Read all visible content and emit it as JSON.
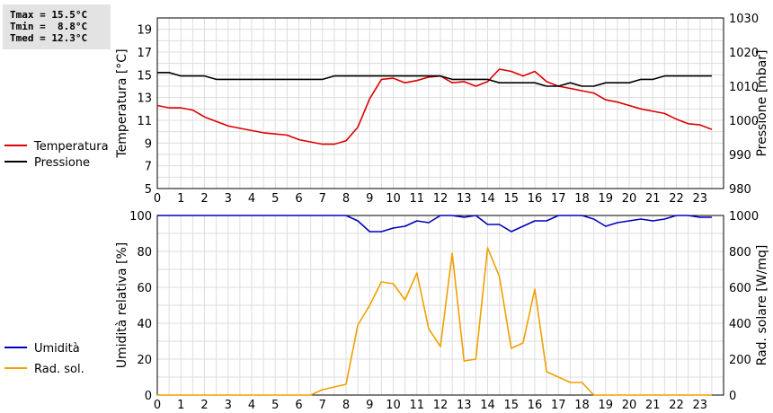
{
  "stats": {
    "lines": [
      "Tmax = 15.5°C",
      "Tmin =  8.8°C",
      "Tmed = 12.3°C"
    ]
  },
  "chart_data": [
    {
      "type": "line",
      "title": "",
      "xlabel": "",
      "ylabel_left": "Temperatura [°C]",
      "ylabel_right": "Pressione [mbar]",
      "xlim": [
        0,
        24
      ],
      "x_ticks": [
        0,
        1,
        2,
        3,
        4,
        5,
        6,
        7,
        8,
        9,
        10,
        11,
        12,
        13,
        14,
        15,
        16,
        17,
        18,
        19,
        20,
        21,
        22,
        23
      ],
      "y_left_ticks": [
        5,
        7,
        9,
        11,
        13,
        15,
        17,
        19
      ],
      "y_left_lim": [
        5,
        20
      ],
      "y_right_ticks": [
        980,
        990,
        1000,
        1010,
        1020,
        1030
      ],
      "y_right_lim": [
        980,
        1030
      ],
      "grid": true,
      "legend_placement": "left",
      "colors": {
        "Temperatura": "#dd0000",
        "Pressione": "#000000"
      },
      "series": [
        {
          "name": "Temperatura",
          "axis": "left",
          "x": [
            0,
            0.5,
            1,
            1.5,
            2,
            2.5,
            3,
            3.5,
            4,
            4.5,
            5,
            5.5,
            6,
            6.5,
            7,
            7.5,
            8,
            8.5,
            9,
            9.5,
            10,
            10.5,
            11,
            11.5,
            12,
            12.5,
            13,
            13.5,
            14,
            14.5,
            15,
            15.5,
            16,
            16.5,
            17,
            17.5,
            18,
            18.5,
            19,
            19.5,
            20,
            20.5,
            21,
            21.5,
            22,
            22.5,
            23,
            23.5
          ],
          "values": [
            12.3,
            12.1,
            12.1,
            11.9,
            11.3,
            10.9,
            10.5,
            10.3,
            10.1,
            9.9,
            9.8,
            9.7,
            9.3,
            9.1,
            8.9,
            8.9,
            9.2,
            10.4,
            12.9,
            14.6,
            14.7,
            14.3,
            14.5,
            14.8,
            14.9,
            14.3,
            14.4,
            14.0,
            14.4,
            15.5,
            15.3,
            14.9,
            15.3,
            14.4,
            14.0,
            13.8,
            13.6,
            13.4,
            12.8,
            12.6,
            12.3,
            12.0,
            11.8,
            11.6,
            11.1,
            10.7,
            10.6,
            10.2
          ]
        },
        {
          "name": "Pressione",
          "axis": "right",
          "x": [
            0,
            0.5,
            1,
            1.5,
            2,
            2.5,
            3,
            3.5,
            4,
            4.5,
            5,
            5.5,
            6,
            6.5,
            7,
            7.5,
            8,
            8.5,
            9,
            9.5,
            10,
            10.5,
            11,
            11.5,
            12,
            12.5,
            13,
            13.5,
            14,
            14.5,
            15,
            15.5,
            16,
            16.5,
            17,
            17.5,
            18,
            18.5,
            19,
            19.5,
            20,
            20.5,
            21,
            21.5,
            22,
            22.5,
            23,
            23.5
          ],
          "values": [
            1014,
            1014,
            1013,
            1013,
            1013,
            1012,
            1012,
            1012,
            1012,
            1012,
            1012,
            1012,
            1012,
            1012,
            1012,
            1013,
            1013,
            1013,
            1013,
            1013,
            1013,
            1013,
            1013,
            1013,
            1013,
            1012,
            1012,
            1012,
            1012,
            1011,
            1011,
            1011,
            1011,
            1010,
            1010,
            1011,
            1010,
            1010,
            1011,
            1011,
            1011,
            1012,
            1012,
            1013,
            1013,
            1013,
            1013,
            1013
          ]
        }
      ]
    },
    {
      "type": "line",
      "title": "",
      "xlabel": "",
      "ylabel_left": "Umidità relativa [%]",
      "ylabel_right": "Rad. solare [W/mq]",
      "xlim": [
        0,
        24
      ],
      "x_ticks": [
        0,
        1,
        2,
        3,
        4,
        5,
        6,
        7,
        8,
        9,
        10,
        11,
        12,
        13,
        14,
        15,
        16,
        17,
        18,
        19,
        20,
        21,
        22,
        23
      ],
      "y_left_ticks": [
        0,
        20,
        40,
        60,
        80,
        100
      ],
      "y_left_lim": [
        0,
        100
      ],
      "y_right_ticks": [
        0,
        200,
        400,
        600,
        800,
        1000
      ],
      "y_right_lim": [
        0,
        1000
      ],
      "grid": true,
      "legend_placement": "left",
      "colors": {
        "Umidità": "#0000bb",
        "Rad. sol.": "#f0a000"
      },
      "series": [
        {
          "name": "Umidità",
          "axis": "left",
          "x": [
            0,
            0.5,
            1,
            1.5,
            2,
            2.5,
            3,
            3.5,
            4,
            4.5,
            5,
            5.5,
            6,
            6.5,
            7,
            7.5,
            8,
            8.5,
            9,
            9.5,
            10,
            10.5,
            11,
            11.5,
            12,
            12.5,
            13,
            13.5,
            14,
            14.5,
            15,
            15.5,
            16,
            16.5,
            17,
            17.5,
            18,
            18.5,
            19,
            19.5,
            20,
            20.5,
            21,
            21.5,
            22,
            22.5,
            23,
            23.5
          ],
          "values": [
            100,
            100,
            100,
            100,
            100,
            100,
            100,
            100,
            100,
            100,
            100,
            100,
            100,
            100,
            100,
            100,
            100,
            97,
            91,
            91,
            93,
            94,
            97,
            96,
            100,
            100,
            99,
            100,
            95,
            95,
            91,
            94,
            97,
            97,
            100,
            100,
            100,
            98,
            94,
            96,
            97,
            98,
            97,
            98,
            100,
            100,
            99,
            99
          ]
        },
        {
          "name": "Rad. sol.",
          "axis": "right",
          "x": [
            0,
            0.5,
            1,
            1.5,
            2,
            2.5,
            3,
            3.5,
            4,
            4.5,
            5,
            5.5,
            6,
            6.5,
            7,
            7.5,
            8,
            8.5,
            9,
            9.5,
            10,
            10.5,
            11,
            11.5,
            12,
            12.5,
            13,
            13.5,
            14,
            14.5,
            15,
            15.5,
            16,
            16.5,
            17,
            17.5,
            18,
            18.5,
            19,
            19.5,
            20,
            20.5,
            21,
            21.5,
            22,
            22.5,
            23,
            23.5
          ],
          "values": [
            0,
            0,
            0,
            0,
            0,
            0,
            0,
            0,
            0,
            0,
            0,
            0,
            0,
            0,
            30,
            45,
            60,
            390,
            500,
            630,
            620,
            530,
            680,
            370,
            270,
            790,
            190,
            200,
            820,
            660,
            260,
            290,
            590,
            130,
            100,
            70,
            70,
            0,
            0,
            0,
            0,
            0,
            0,
            0,
            0,
            0,
            0,
            0
          ]
        }
      ]
    }
  ]
}
